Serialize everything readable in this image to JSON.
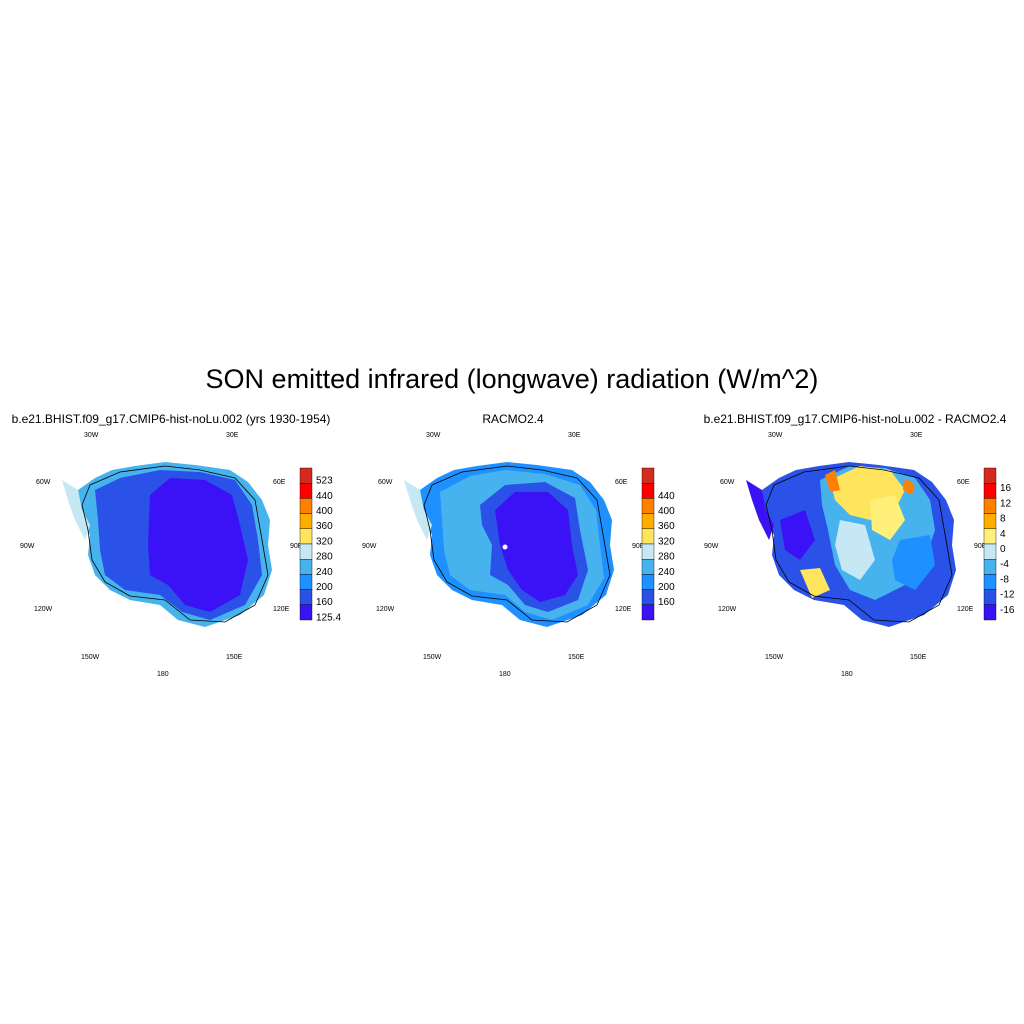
{
  "title": "SON emitted infrared (longwave) radiation (W/m^2)",
  "panels": [
    {
      "title": "b.e21.BHIST.f09_g17.CMIP6-hist-noLu.002 (yrs 1930-1954)",
      "colorbar": {
        "labels": [
          "523",
          "440",
          "400",
          "360",
          "320",
          "280",
          "240",
          "200",
          "160",
          "125.4"
        ],
        "colors": [
          "#d52b1e",
          "#ff0000",
          "#ff7f00",
          "#ffae00",
          "#ffe45e",
          "#c6e8f5",
          "#47b3ee",
          "#1e90ff",
          "#2a52e8",
          "#3b11f5"
        ]
      }
    },
    {
      "title": "RACMO2.4",
      "colorbar": {
        "labels": [
          "440",
          "400",
          "360",
          "320",
          "280",
          "240",
          "200",
          "160"
        ],
        "colors": [
          "#d52b1e",
          "#ff0000",
          "#ff7f00",
          "#ffae00",
          "#ffe45e",
          "#c6e8f5",
          "#47b3ee",
          "#1e90ff",
          "#2a52e8",
          "#3b11f5"
        ]
      }
    },
    {
      "title": "b.e21.BHIST.f09_g17.CMIP6-hist-noLu.002 - RACMO2.4",
      "colorbar": {
        "labels": [
          "16",
          "12",
          "8",
          "4",
          "0",
          "-4",
          "-8",
          "-12",
          "-16"
        ],
        "colors": [
          "#d52b1e",
          "#ff0000",
          "#ff7f00",
          "#ffae00",
          "#fff07a",
          "#c6e8f5",
          "#47b3ee",
          "#1e90ff",
          "#2a52e8",
          "#3b11f5"
        ]
      }
    }
  ],
  "geo_labels": {
    "lon_30w": "30W",
    "lon_30e": "30E",
    "lon_60w": "60W",
    "lon_60e": "60E",
    "lon_90w": "90W",
    "lon_90e": "90E",
    "lon_120w": "120W",
    "lon_120e": "120E",
    "lon_150w": "150W",
    "lon_150e": "150E",
    "lon_180": "180"
  },
  "colors": {
    "deep_blue": "#3b11f5",
    "blue": "#2a52e8",
    "mid_blue": "#1e90ff",
    "light_blue": "#47b3ee",
    "pale_blue": "#c6e8f5",
    "yellow": "#fff07a",
    "orange": "#ffae00"
  }
}
